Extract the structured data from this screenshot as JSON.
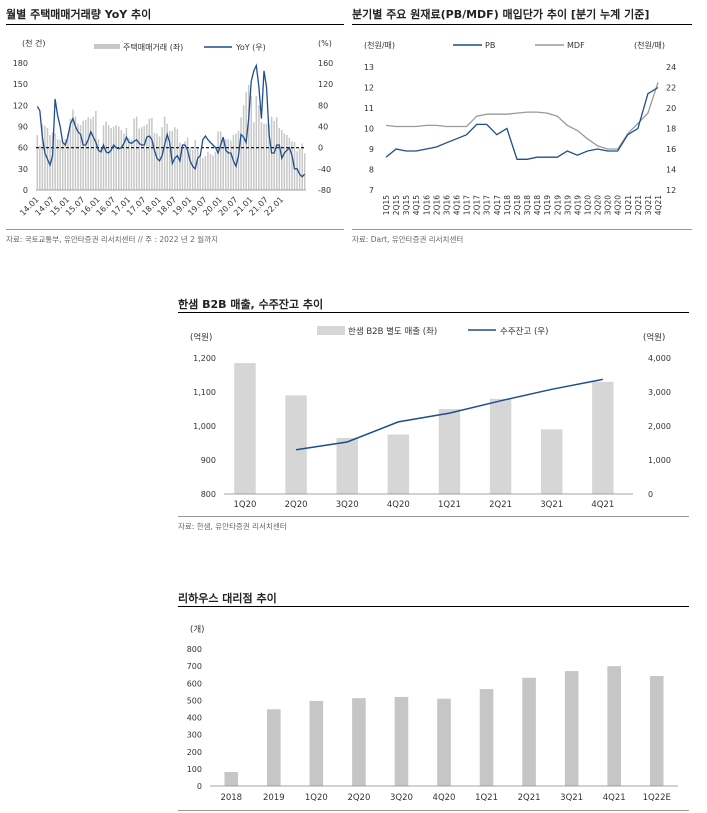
{
  "colors": {
    "bar": "#c8c8c8",
    "line": "#1f4e8c",
    "mdf": "#9a9a9a",
    "refline": "#000000"
  },
  "charts": [
    {
      "title": "월별 주택매매거래량 YoY 추이",
      "source": "자료: 국토교통부, 유안타증권 리서치센터 // 주 : 2022 년 2 월까지",
      "left_unit": "(천 건)",
      "right_unit": "(%)",
      "legend": [
        "주택매매거래 (좌)",
        "YoY (우)"
      ],
      "left_ticks": [
        "180",
        "150",
        "120",
        "90",
        "60",
        "30",
        "0"
      ],
      "right_ticks": [
        "160",
        "120",
        "80",
        "40",
        "0",
        "-40",
        "-80"
      ],
      "x_ticks": [
        "14.01",
        "14.07",
        "15.01",
        "15.07",
        "16.01",
        "16.07",
        "17.01",
        "17.07",
        "18.01",
        "18.07",
        "19.01",
        "19.07",
        "20.01",
        "20.07",
        "21.01",
        "21.07",
        "22.01"
      ]
    },
    {
      "title": "분기별 주요 원재료(PB/MDF) 매입단가 추이 [분기 누계 기준]",
      "source": "자료: Dart, 유안타증권 리서치센터",
      "left_unit": "(천원/매)",
      "right_unit": "(천원/매)",
      "legend": [
        "PB",
        "MDF"
      ],
      "left_ticks": [
        "13",
        "12",
        "11",
        "10",
        "9",
        "8",
        "7"
      ],
      "right_ticks": [
        "24",
        "22",
        "20",
        "18",
        "16",
        "14",
        "12"
      ],
      "x_ticks": [
        "1Q15",
        "2Q15",
        "3Q15",
        "4Q15",
        "1Q16",
        "2Q16",
        "3Q16",
        "4Q16",
        "1Q17",
        "2Q17",
        "3Q17",
        "4Q17",
        "1Q18",
        "2Q18",
        "3Q18",
        "4Q18",
        "1Q19",
        "2Q19",
        "3Q19",
        "4Q19",
        "1Q20",
        "2Q20",
        "3Q20",
        "4Q20",
        "1Q21",
        "2Q21",
        "3Q21",
        "4Q21"
      ]
    },
    {
      "title": "한샘 B2B 매출, 수주잔고 추이",
      "source": "자료: 한샘, 유안타증권 리서치센터",
      "left_unit": "(억원)",
      "right_unit": "(억원)",
      "legend": [
        "한샘 B2B 별도 매출 (좌)",
        "수주잔고 (우)"
      ],
      "left_ticks": [
        "1,200",
        "1,100",
        "1,000",
        "900",
        "800"
      ],
      "right_ticks": [
        "4,000",
        "3,000",
        "2,000",
        "1,000",
        "0"
      ],
      "x_ticks": [
        "1Q20",
        "2Q20",
        "3Q20",
        "4Q20",
        "1Q21",
        "2Q21",
        "3Q21",
        "4Q21"
      ]
    },
    {
      "title": "리하우스 대리점 추이",
      "source": "",
      "left_unit": "(개)",
      "left_ticks": [
        "800",
        "700",
        "600",
        "500",
        "400",
        "300",
        "200",
        "100",
        "0"
      ],
      "x_ticks": [
        "2018",
        "2019",
        "1Q20",
        "2Q20",
        "3Q20",
        "4Q20",
        "1Q21",
        "2Q21",
        "3Q21",
        "4Q21",
        "1Q22E"
      ]
    }
  ],
  "chart_data": [
    {
      "type": "bar",
      "title": "월별 주택매매거래량 YoY 추이",
      "ylabel": "(천 건)",
      "y2label": "(%)",
      "ylim": [
        0,
        180
      ],
      "y2lim": [
        -80,
        160
      ],
      "x_start": "14.01",
      "x_end": "22.02",
      "series": [
        {
          "name": "주택매매거래 (좌)",
          "type": "bar",
          "axis": "left",
          "values": [
            78,
            63,
            93,
            91,
            88,
            78,
            82,
            80,
            72,
            71,
            68,
            72,
            80,
            101,
            114,
            104,
            94,
            92,
            98,
            99,
            103,
            101,
            104,
            112,
            72,
            61,
            92,
            97,
            92,
            88,
            90,
            92,
            90,
            85,
            80,
            88,
            74,
            72,
            101,
            104,
            87,
            89,
            91,
            93,
            101,
            102,
            81,
            80,
            76,
            89,
            104,
            94,
            84,
            84,
            89,
            86,
            67,
            59,
            69,
            74,
            60,
            57,
            71,
            60,
            50,
            45,
            48,
            54,
            51,
            49,
            54,
            83,
            83,
            72,
            72,
            72,
            70,
            78,
            80,
            84,
            103,
            120,
            139,
            149,
            133,
            96,
            133,
            120,
            96,
            94,
            94,
            92,
            104,
            98,
            103,
            88,
            85,
            80,
            78,
            74,
            69,
            68,
            55,
            59,
            66,
            52
          ]
        },
        {
          "name": "YoY (우)",
          "type": "line",
          "axis": "right",
          "values": [
            78,
            70,
            20,
            -10,
            -22,
            -33,
            -15,
            92,
            60,
            40,
            10,
            5,
            20,
            45,
            55,
            40,
            30,
            25,
            5,
            5,
            15,
            30,
            20,
            10,
            -5,
            -8,
            5,
            -8,
            -10,
            -5,
            5,
            0,
            -2,
            0,
            8,
            20,
            10,
            8,
            12,
            15,
            8,
            5,
            5,
            20,
            22,
            15,
            -5,
            -20,
            -25,
            -15,
            5,
            25,
            10,
            -30,
            -20,
            -15,
            -25,
            5,
            5,
            -5,
            -25,
            -35,
            -40,
            -20,
            -15,
            15,
            22,
            15,
            10,
            5,
            0,
            -10,
            5,
            20,
            -5,
            -10,
            -10,
            -25,
            -35,
            -15,
            25,
            20,
            10,
            55,
            125,
            145,
            155,
            115,
            55,
            145,
            115,
            25,
            -10,
            -10,
            5,
            5,
            -20,
            -10,
            -5,
            0,
            -15,
            -40,
            -40,
            -50,
            -55,
            -50
          ]
        }
      ]
    },
    {
      "type": "line",
      "title": "분기별 주요 원재료(PB/MDF) 매입단가 추이 [분기 누계 기준]",
      "ylabel": "(천원/매)",
      "y2label": "(천원/매)",
      "ylim": [
        7,
        13
      ],
      "y2lim": [
        12,
        24
      ],
      "categories": [
        "1Q15",
        "2Q15",
        "3Q15",
        "4Q15",
        "1Q16",
        "2Q16",
        "3Q16",
        "4Q16",
        "1Q17",
        "2Q17",
        "3Q17",
        "4Q17",
        "1Q18",
        "2Q18",
        "3Q18",
        "4Q18",
        "1Q19",
        "2Q19",
        "3Q19",
        "4Q19",
        "1Q20",
        "2Q20",
        "3Q20",
        "4Q20",
        "1Q21",
        "2Q21",
        "3Q21",
        "4Q21"
      ],
      "series": [
        {
          "name": "PB",
          "axis": "left",
          "values": [
            8.6,
            9.0,
            8.9,
            8.9,
            9.0,
            9.1,
            9.3,
            9.5,
            9.7,
            10.2,
            10.2,
            9.7,
            10.0,
            8.5,
            8.5,
            8.6,
            8.6,
            8.6,
            8.9,
            8.7,
            8.9,
            9.0,
            8.9,
            8.9,
            9.7,
            10.0,
            11.7,
            12.0
          ]
        },
        {
          "name": "MDF",
          "axis": "right",
          "values": [
            18.3,
            18.2,
            18.2,
            18.2,
            18.3,
            18.3,
            18.2,
            18.2,
            18.2,
            19.2,
            19.4,
            19.4,
            19.4,
            19.5,
            19.6,
            19.6,
            19.5,
            19.2,
            18.3,
            17.8,
            17.0,
            16.3,
            16.0,
            16.0,
            17.5,
            18.5,
            19.5,
            22.5
          ]
        }
      ]
    },
    {
      "type": "bar",
      "title": "한샘 B2B 매출, 수주잔고 추이",
      "ylabel": "(억원)",
      "y2label": "(억원)",
      "ylim": [
        800,
        1200
      ],
      "y2lim": [
        0,
        4000
      ],
      "categories": [
        "1Q20",
        "2Q20",
        "3Q20",
        "4Q20",
        "1Q21",
        "2Q21",
        "3Q21",
        "4Q21"
      ],
      "series": [
        {
          "name": "한샘 B2B 별도 매출 (좌)",
          "type": "bar",
          "axis": "left",
          "values": [
            1185,
            1090,
            965,
            975,
            1050,
            1080,
            990,
            1130
          ]
        },
        {
          "name": "수주잔고 (우)",
          "type": "line",
          "axis": "right",
          "values": [
            null,
            1300,
            1530,
            2120,
            2380,
            2740,
            3080,
            3370
          ]
        }
      ]
    },
    {
      "type": "bar",
      "title": "리하우스 대리점 추이",
      "ylabel": "(개)",
      "ylim": [
        0,
        800
      ],
      "categories": [
        "2018",
        "2019",
        "1Q20",
        "2Q20",
        "3Q20",
        "4Q20",
        "1Q21",
        "2Q21",
        "3Q21",
        "4Q21",
        "1Q22E"
      ],
      "values": [
        82,
        448,
        497,
        513,
        520,
        510,
        566,
        632,
        671,
        700,
        642
      ]
    }
  ]
}
